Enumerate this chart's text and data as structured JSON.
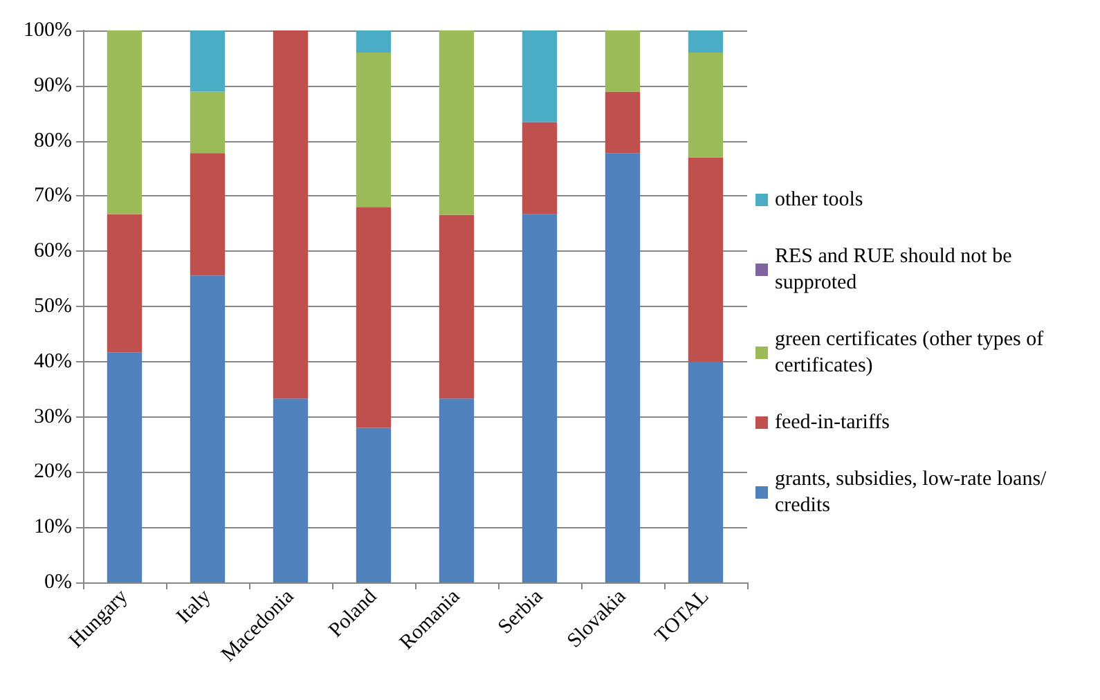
{
  "chart_data": {
    "type": "bar",
    "stacked": true,
    "categories": [
      "Hungary",
      "Italy",
      "Macedonia",
      "Poland",
      "Romania",
      "Serbia",
      "Slovakia",
      "TOTAL"
    ],
    "series": [
      {
        "name": "grants, subsidies, low-rate loans/credits",
        "color": "#4f81bd",
        "values": [
          41.7,
          55.6,
          33.3,
          28,
          33.3,
          66.7,
          77.8,
          40
        ]
      },
      {
        "name": "feed-in-tariffs",
        "color": "#c0504d",
        "values": [
          25,
          22.2,
          66.7,
          40,
          33.3,
          16.7,
          11.1,
          37
        ]
      },
      {
        "name": "green certificates (other types of certificates)",
        "color": "#9bbb59",
        "values": [
          33.3,
          11.1,
          0,
          28,
          33.4,
          0,
          11.1,
          19
        ]
      },
      {
        "name": "RES and RUE should not be supproted",
        "color": "#8064a2",
        "values": [
          0,
          0,
          0,
          0,
          0,
          0,
          0,
          0
        ]
      },
      {
        "name": "other tools",
        "color": "#4bacc6",
        "values": [
          0,
          11.1,
          0,
          4,
          0,
          16.6,
          0,
          4
        ]
      }
    ],
    "ylim": [
      0,
      100
    ],
    "yticks": [
      {
        "value": 0,
        "label": "0%"
      },
      {
        "value": 10,
        "label": "10%"
      },
      {
        "value": 20,
        "label": "20%"
      },
      {
        "value": 30,
        "label": "30%"
      },
      {
        "value": 40,
        "label": "40%"
      },
      {
        "value": 50,
        "label": "50%"
      },
      {
        "value": 60,
        "label": "60%"
      },
      {
        "value": 70,
        "label": "70%"
      },
      {
        "value": 80,
        "label": "80%"
      },
      {
        "value": 90,
        "label": "90%"
      },
      {
        "value": 100,
        "label": "100%"
      }
    ],
    "grid": "y",
    "legend": "right"
  }
}
